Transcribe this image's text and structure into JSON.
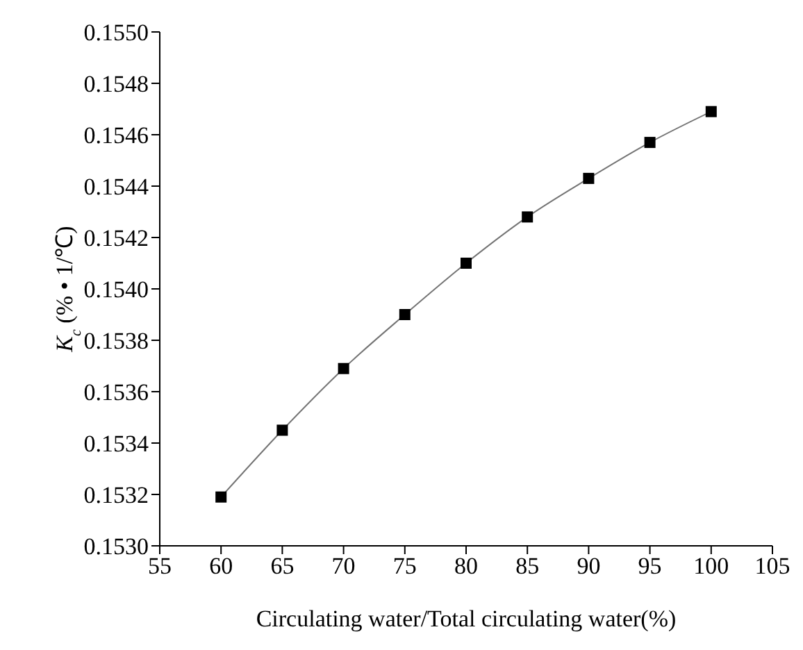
{
  "chart_data": {
    "type": "line",
    "xlabel": "Circulating water/Total circulating water(%)",
    "ylabel": "K$_{c}$ (% • 1/℃)",
    "x": [
      60,
      65,
      70,
      75,
      80,
      85,
      90,
      95,
      100
    ],
    "series": [
      {
        "color": "#000000",
        "values": [
          0.15319,
          0.15345,
          0.15369,
          0.1539,
          0.1541,
          0.15428,
          0.15443,
          0.15457,
          0.15469
        ]
      }
    ],
    "xlim": [
      55,
      105
    ],
    "xticks": [
      55,
      60,
      65,
      70,
      75,
      80,
      85,
      90,
      95,
      100,
      105
    ],
    "ylim": [
      0.153,
      0.155
    ],
    "yticks": [
      {
        "value": 0.153,
        "label": "0.1530"
      },
      {
        "value": 0.1532,
        "label": "0.1532"
      },
      {
        "value": 0.1534,
        "label": "0.1534"
      },
      {
        "value": 0.1536,
        "label": "0.1536"
      },
      {
        "value": 0.1538,
        "label": "0.1538"
      },
      {
        "value": 0.154,
        "label": "0.1540"
      },
      {
        "value": 0.1542,
        "label": "0.1542"
      },
      {
        "value": 0.1544,
        "label": "0.1544"
      },
      {
        "value": 0.1546,
        "label": "0.1546"
      },
      {
        "value": 0.1548,
        "label": "0.1548"
      },
      {
        "value": 0.155,
        "label": "0.1550"
      }
    ],
    "grid": false,
    "legend": false,
    "marker": "square",
    "line_style": "solid"
  }
}
